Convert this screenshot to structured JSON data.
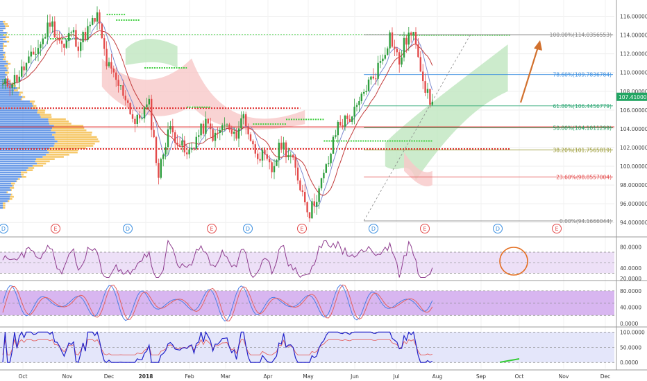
{
  "colors": {
    "up": "#2e9e3e",
    "down": "#e34b4b",
    "bb": "#7e8cd0",
    "ma_red": "#c23b3b",
    "cloud_bull": "#bfe6bf",
    "cloud_bear": "#f7c8c8",
    "rsi_line": "#8e3c8e",
    "rsi_band": "#ede0f7",
    "stoch_k": "#4a7ee6",
    "stoch_d": "#e46161",
    "stoch_band": "#d8b6f0",
    "w_line": "#2020c8",
    "w_signal": "#e46161",
    "w_band": "#e4e6fa",
    "last_badge": "#22a563",
    "arrow": "#d2712e",
    "circle": "#e36d1f"
  },
  "chart_data": {
    "type": "candlestick",
    "last_price_label": "107.4100000",
    "x_ticks": [
      "Oct",
      "Nov",
      "Dec",
      "2018",
      "Feb",
      "Mar",
      "Apr",
      "May",
      "Jun",
      "Jul",
      "Aug",
      "Sep",
      "Oct",
      "Nov",
      "Dec"
    ],
    "y_ticks": [
      "116.0000000",
      "114.0000000",
      "112.0000000",
      "110.0000000",
      "108.0000000",
      "106.0000000",
      "104.0000000",
      "102.0000000",
      "100.0000000",
      "98.0000000",
      "96.0000000",
      "94.0000000"
    ],
    "y_values": [
      116,
      114,
      112,
      110,
      108,
      106,
      104,
      102,
      100,
      98,
      96,
      94
    ],
    "ylim": [
      93.5,
      117
    ],
    "fib_levels": [
      {
        "label": "100.00%(114.0356553)",
        "value": 114.0357,
        "color": "#888888"
      },
      {
        "label": "78.60%(109.7836784)",
        "value": 109.7837,
        "color": "#3a8ee0"
      },
      {
        "label": "61.80%(106.4456779)",
        "value": 106.4457,
        "color": "#2ba673"
      },
      {
        "label": "50.00%(104.1011299)",
        "value": 104.1011,
        "color": "#22a563"
      },
      {
        "label": "38.20%(101.7565819)",
        "value": 101.7566,
        "color": "#999933"
      },
      {
        "label": "23.60%(98.8557004)",
        "value": 98.8557,
        "color": "#e34b4b"
      },
      {
        "label": "0.00%(94.1666044)",
        "value": 94.1666,
        "color": "#888888"
      }
    ],
    "event_markers": [
      {
        "label": "D",
        "color": "#3a8ee0"
      },
      {
        "label": "E",
        "color": "#e34b4b"
      },
      {
        "label": "D",
        "color": "#3a8ee0"
      },
      {
        "label": "E",
        "color": "#e34b4b"
      },
      {
        "label": "D",
        "color": "#3a8ee0"
      },
      {
        "label": "E",
        "color": "#e34b4b"
      },
      {
        "label": "D",
        "color": "#3a8ee0"
      },
      {
        "label": "E",
        "color": "#e34b4b"
      },
      {
        "label": "D",
        "color": "#3a8ee0"
      },
      {
        "label": "E",
        "color": "#e34b4b"
      }
    ],
    "anchors": [
      [
        0,
        108.5
      ],
      [
        6,
        109.5
      ],
      [
        12,
        111.5
      ],
      [
        17,
        113.5
      ],
      [
        20,
        115.5
      ],
      [
        23,
        114
      ],
      [
        26,
        112.5
      ],
      [
        29,
        114.5
      ],
      [
        32,
        113
      ],
      [
        36,
        114.5
      ],
      [
        40,
        116
      ],
      [
        44,
        111
      ],
      [
        48,
        109
      ],
      [
        52,
        107.5
      ],
      [
        56,
        104.5
      ],
      [
        60,
        106
      ],
      [
        62,
        106.5
      ],
      [
        66,
        99
      ],
      [
        70,
        104
      ],
      [
        74,
        103
      ],
      [
        78,
        101
      ],
      [
        82,
        103
      ],
      [
        86,
        104.5
      ],
      [
        90,
        103
      ],
      [
        94,
        104.5
      ],
      [
        98,
        103
      ],
      [
        102,
        105.5
      ],
      [
        106,
        102
      ],
      [
        110,
        101
      ],
      [
        114,
        99.5
      ],
      [
        118,
        102.5
      ],
      [
        122,
        101
      ],
      [
        126,
        98
      ],
      [
        130,
        95
      ],
      [
        134,
        97.5
      ],
      [
        138,
        100.5
      ],
      [
        142,
        104.5
      ],
      [
        146,
        105
      ],
      [
        150,
        106
      ],
      [
        154,
        108.5
      ],
      [
        158,
        110
      ],
      [
        162,
        112.5
      ],
      [
        164,
        114
      ],
      [
        168,
        111
      ],
      [
        170,
        113
      ],
      [
        172,
        114
      ],
      [
        175,
        113.5
      ],
      [
        178,
        109.5
      ],
      [
        180,
        107.5
      ],
      [
        182,
        106.5
      ]
    ],
    "rsi": {
      "ticks": [
        "80.0000",
        "40.0000",
        "20.0000"
      ],
      "tick_values": [
        80,
        40,
        20
      ],
      "band": [
        30,
        70
      ],
      "ylim": [
        20,
        95
      ]
    },
    "stoch": {
      "ticks": [
        "80.0000",
        "40.0000",
        "0.0000"
      ],
      "tick_values": [
        80,
        40,
        0
      ],
      "band": [
        20,
        80
      ],
      "ylim": [
        -5,
        100
      ]
    },
    "williams": {
      "ticks": [
        "100.0000",
        "50.0000",
        "0.0000"
      ],
      "tick_values": [
        100,
        50,
        0
      ],
      "band": [
        0,
        100
      ],
      "ylim": [
        -20,
        110
      ]
    }
  }
}
